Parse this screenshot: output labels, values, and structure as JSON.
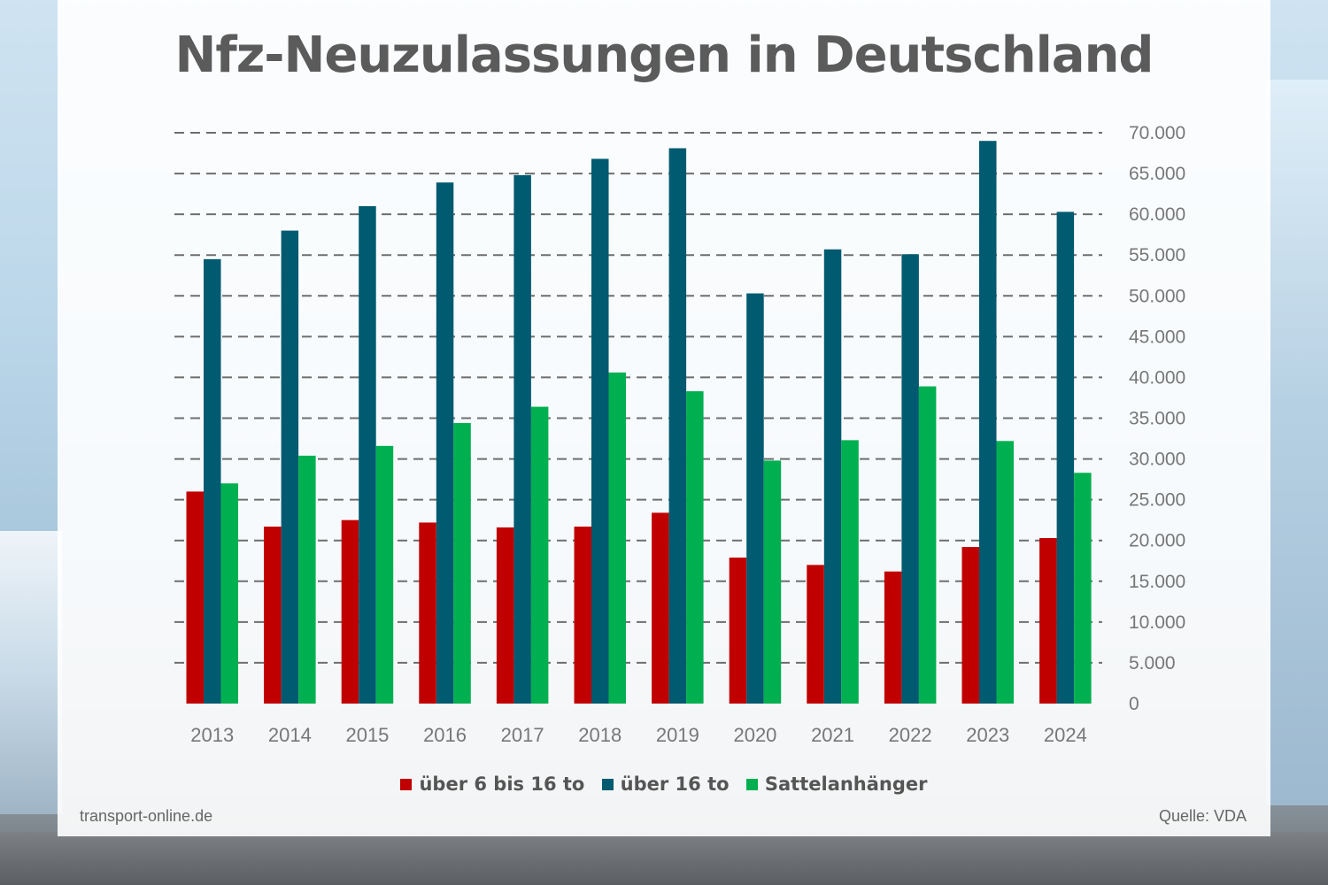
{
  "colors": {
    "series_red": "#c00000",
    "series_blue": "#005a70",
    "series_green": "#00b050",
    "grid": "#6e6e6e",
    "title": "#5b5b5b"
  },
  "chart_data": {
    "type": "bar",
    "title": "Nfz-Neuzulassungen in Deutschland",
    "xlabel": "",
    "ylabel": "",
    "ylim": [
      0,
      70000
    ],
    "yticks": [
      0,
      5000,
      10000,
      15000,
      20000,
      25000,
      30000,
      35000,
      40000,
      45000,
      50000,
      55000,
      60000,
      65000,
      70000
    ],
    "ytick_labels": [
      "0",
      "5.000",
      "10.000",
      "15.000",
      "20.000",
      "25.000",
      "30.000",
      "35.000",
      "40.000",
      "45.000",
      "50.000",
      "55.000",
      "60.000",
      "65.000",
      "70.000"
    ],
    "grid": true,
    "legend_position": "bottom",
    "categories": [
      "2013",
      "2014",
      "2015",
      "2016",
      "2017",
      "2018",
      "2019",
      "2020",
      "2021",
      "2022",
      "2023",
      "2024"
    ],
    "series": [
      {
        "name": "über 6 bis 16 to",
        "color": "#c00000",
        "values": [
          26000,
          21700,
          22500,
          22200,
          21600,
          21700,
          23400,
          17900,
          17000,
          16200,
          19200,
          20300
        ]
      },
      {
        "name": "über 16 to",
        "color": "#005a70",
        "values": [
          54500,
          58000,
          61000,
          63900,
          64800,
          66800,
          68100,
          50300,
          55700,
          55100,
          69000,
          60300
        ]
      },
      {
        "name": "Sattelanhänger",
        "color": "#00b050",
        "values": [
          27000,
          30400,
          31600,
          34400,
          36400,
          40600,
          38300,
          29800,
          32300,
          38900,
          32200,
          28300
        ]
      }
    ]
  },
  "footer": {
    "source_left": "transport-online.de",
    "source_right": "Quelle: VDA"
  }
}
